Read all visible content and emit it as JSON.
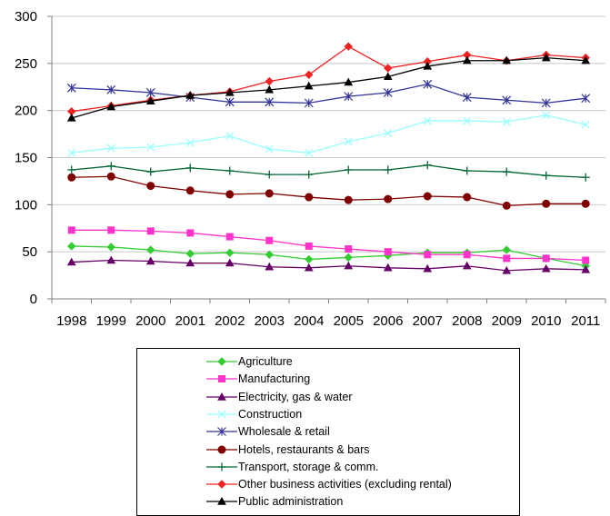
{
  "chart_data": {
    "type": "line",
    "title": "",
    "xlabel": "",
    "ylabel": "",
    "x": [
      "1998",
      "1999",
      "2000",
      "2001",
      "2002",
      "2003",
      "2004",
      "2005",
      "2006",
      "2007",
      "2008",
      "2009",
      "2010",
      "2011"
    ],
    "ylim": [
      0,
      300
    ],
    "yticks": [
      "0",
      "50",
      "100",
      "150",
      "200",
      "250",
      "300"
    ],
    "grid": "horizontal",
    "legend_position": "bottom",
    "series": [
      {
        "name": "Agriculture",
        "color": "#33cc33",
        "marker": "diamond",
        "values": [
          56,
          55,
          52,
          48,
          49,
          47,
          42,
          44,
          46,
          49,
          49,
          52,
          43,
          35
        ]
      },
      {
        "name": "Manufacturing",
        "color": "#ff33cc",
        "marker": "square",
        "values": [
          73,
          73,
          72,
          70,
          66,
          62,
          56,
          53,
          50,
          47,
          47,
          43,
          43,
          41
        ]
      },
      {
        "name": "Electricity, gas & water",
        "color": "#660066",
        "marker": "triangle",
        "values": [
          39,
          41,
          40,
          38,
          38,
          34,
          33,
          35,
          33,
          32,
          35,
          30,
          32,
          31
        ]
      },
      {
        "name": "Construction",
        "color": "#99ffff",
        "marker": "x",
        "values": [
          155,
          160,
          161,
          166,
          173,
          159,
          155,
          167,
          176,
          189,
          189,
          188,
          195,
          185
        ]
      },
      {
        "name": "Wholesale  & retail",
        "color": "#333399",
        "marker": "star",
        "values": [
          224,
          222,
          219,
          214,
          209,
          209,
          208,
          215,
          219,
          228,
          214,
          211,
          208,
          213
        ]
      },
      {
        "name": "Hotels, restaurants  & bars",
        "color": "#800000",
        "marker": "circle",
        "values": [
          129,
          130,
          120,
          115,
          111,
          112,
          108,
          105,
          106,
          109,
          108,
          99,
          101,
          101
        ]
      },
      {
        "name": "Transport,  storage  & comm.",
        "color": "#006633",
        "marker": "plus",
        "values": [
          137,
          141,
          135,
          139,
          136,
          132,
          132,
          137,
          137,
          142,
          136,
          135,
          131,
          129
        ]
      },
      {
        "name": "Other business  activities  (excluding  rental)",
        "color": "#ee2222",
        "marker": "diamond",
        "values": [
          199,
          205,
          211,
          216,
          220,
          231,
          238,
          268,
          245,
          252,
          259,
          253,
          259,
          256
        ]
      },
      {
        "name": "Public administration",
        "color": "#000000",
        "marker": "triangle",
        "values": [
          192,
          204,
          210,
          216,
          219,
          222,
          226,
          230,
          236,
          247,
          253,
          253,
          256,
          253
        ]
      }
    ]
  }
}
